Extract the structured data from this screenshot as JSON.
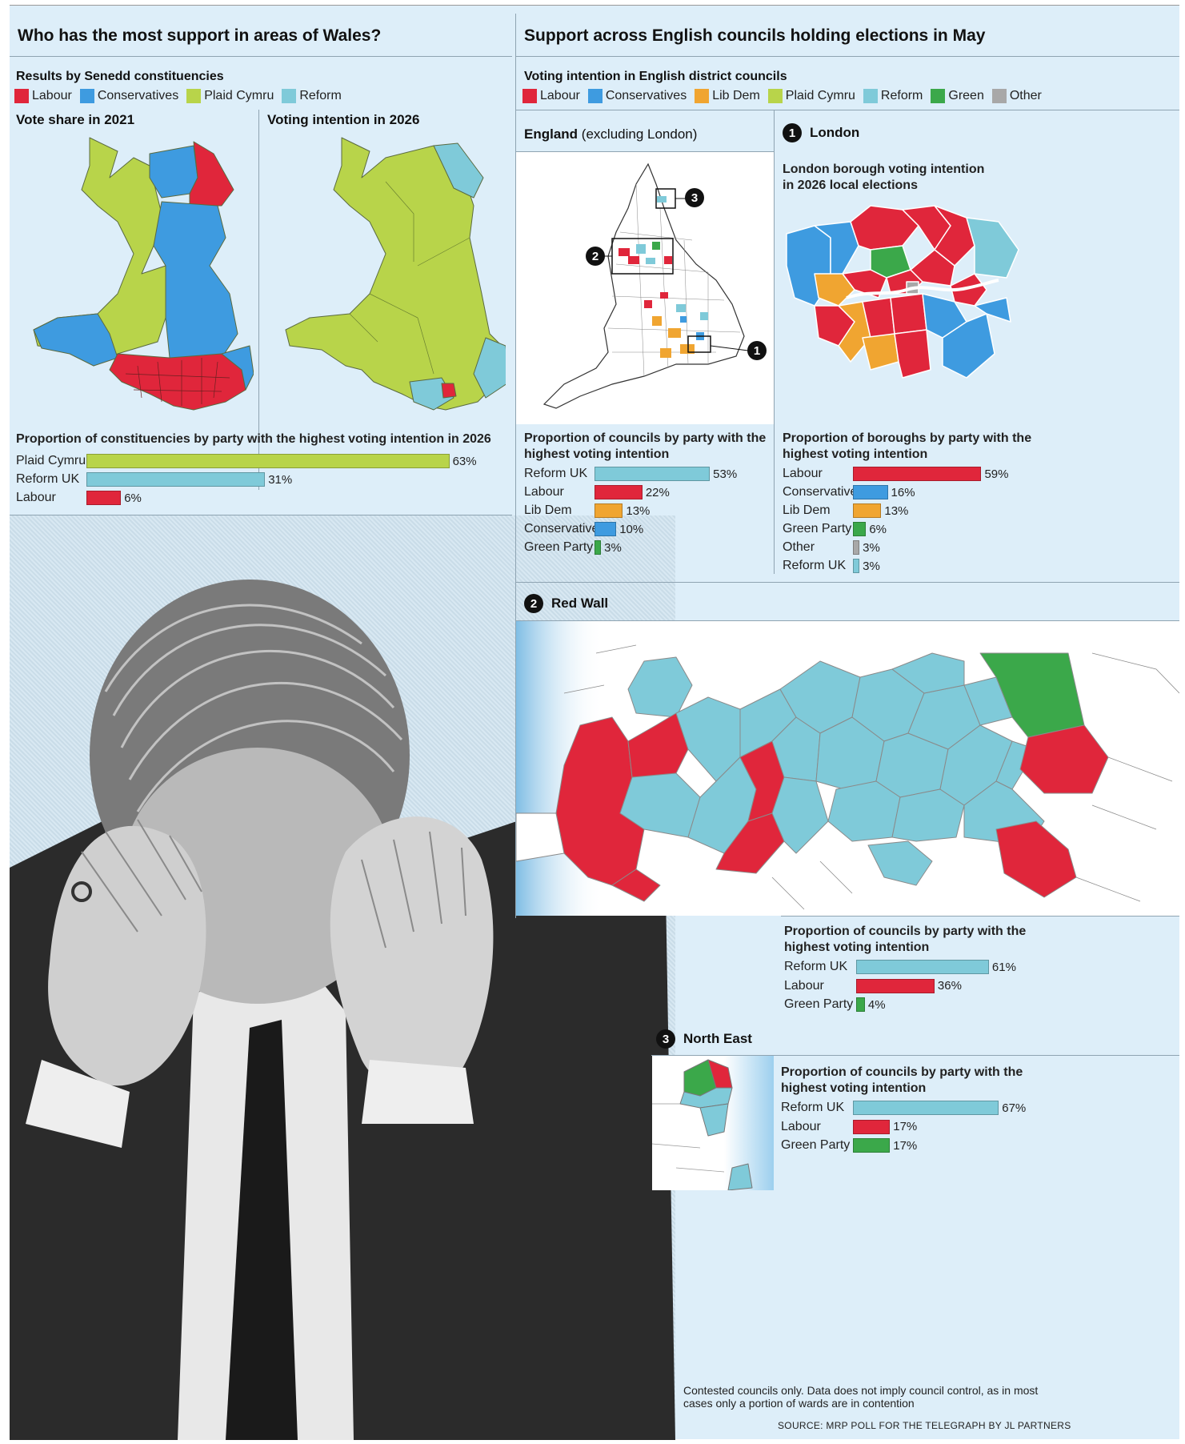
{
  "wales": {
    "title": "Who has the most support in areas of Wales?",
    "subtitle": "Results by Senedd constituencies",
    "legend": [
      {
        "label": "Labour",
        "color": "#e0263b"
      },
      {
        "label": "Conservatives",
        "color": "#3e9be0"
      },
      {
        "label": "Plaid Cymru",
        "color": "#b8d44a"
      },
      {
        "label": "Reform",
        "color": "#7fcad9"
      }
    ],
    "map_left_title": "Vote share in 2021",
    "map_right_title": "Voting intention in 2026",
    "chart_title": "Proportion of constituencies by party with the highest voting intention in 2026"
  },
  "england": {
    "title": "Support across English councils holding elections in May",
    "subtitle": "Voting intention in English district councils",
    "legend": [
      {
        "label": "Labour",
        "color": "#e0263b"
      },
      {
        "label": "Conservatives",
        "color": "#3e9be0"
      },
      {
        "label": "Lib Dem",
        "color": "#f0a531"
      },
      {
        "label": "Plaid Cymru",
        "color": "#b8d44a"
      },
      {
        "label": "Reform",
        "color": "#7fcad9"
      },
      {
        "label": "Green",
        "color": "#3ba84a"
      },
      {
        "label": "Other",
        "color": "#a8a8a8"
      }
    ],
    "england_title": "England",
    "england_title_suffix": "(excluding London)",
    "london_badge": "1",
    "london_title": "London",
    "london_sub_line1": "London borough voting intention",
    "london_sub_line2": "in 2026 local elections",
    "england_chart_title_line1": "Proportion of councils by party with the",
    "england_chart_title_line2": "highest voting intention",
    "london_chart_title_line1": "Proportion of boroughs by party with the",
    "london_chart_title_line2": "highest voting intention",
    "redwall_badge": "2",
    "redwall_title": "Red Wall",
    "redwall_chart_title_line1": "Proportion of councils by party with the",
    "redwall_chart_title_line2": "highest voting intention",
    "northeast_badge": "3",
    "northeast_title": "North East",
    "northeast_chart_title_line1": "Proportion of councils by party with the",
    "northeast_chart_title_line2": "highest voting intention",
    "map_badges": [
      "3",
      "2",
      "1"
    ],
    "note_line1": "Contested councils only. Data does not imply council control, as in most",
    "note_line2": "cases only a portion of wards are in contention",
    "source": "SOURCE: MRP POLL FOR THE TELEGRAPH BY JL PARTNERS"
  },
  "chart_data": [
    {
      "type": "bar",
      "id": "wales",
      "title": "Proportion of constituencies by party with the highest voting intention in 2026",
      "categories": [
        "Plaid Cymru",
        "Reform UK",
        "Labour"
      ],
      "values": [
        63,
        31,
        6
      ],
      "labels": [
        "63%",
        "31%",
        "6%"
      ],
      "colors": [
        "#b8d44a",
        "#7fcad9",
        "#e0263b"
      ]
    },
    {
      "type": "bar",
      "id": "england",
      "title": "Proportion of councils by party with the highest voting intention",
      "categories": [
        "Reform UK",
        "Labour",
        "Lib Dem",
        "Conservative",
        "Green Party"
      ],
      "values": [
        53,
        22,
        13,
        10,
        3
      ],
      "labels": [
        "53%",
        "22%",
        "13%",
        "10%",
        "3%"
      ],
      "colors": [
        "#7fcad9",
        "#e0263b",
        "#f0a531",
        "#3e9be0",
        "#3ba84a"
      ]
    },
    {
      "type": "bar",
      "id": "london",
      "title": "Proportion of boroughs by party with the highest voting intention",
      "categories": [
        "Labour",
        "Conservative",
        "Lib Dem",
        "Green Party",
        "Other",
        "Reform UK"
      ],
      "values": [
        59,
        16,
        13,
        6,
        3,
        3
      ],
      "labels": [
        "59%",
        "16%",
        "13%",
        "6%",
        "3%",
        "3%"
      ],
      "colors": [
        "#e0263b",
        "#3e9be0",
        "#f0a531",
        "#3ba84a",
        "#a8a8a8",
        "#7fcad9"
      ]
    },
    {
      "type": "bar",
      "id": "redwall",
      "title": "Proportion of councils by party with the highest voting intention",
      "categories": [
        "Reform UK",
        "Labour",
        "Green Party"
      ],
      "values": [
        61,
        36,
        4
      ],
      "labels": [
        "61%",
        "36%",
        "4%"
      ],
      "colors": [
        "#7fcad9",
        "#e0263b",
        "#3ba84a"
      ]
    },
    {
      "type": "bar",
      "id": "northeast",
      "title": "Proportion of councils by party with the highest voting intention",
      "categories": [
        "Reform UK",
        "Labour",
        "Green Party"
      ],
      "values": [
        67,
        17,
        17
      ],
      "labels": [
        "67%",
        "17%",
        "17%"
      ],
      "colors": [
        "#7fcad9",
        "#e0263b",
        "#3ba84a"
      ]
    }
  ]
}
